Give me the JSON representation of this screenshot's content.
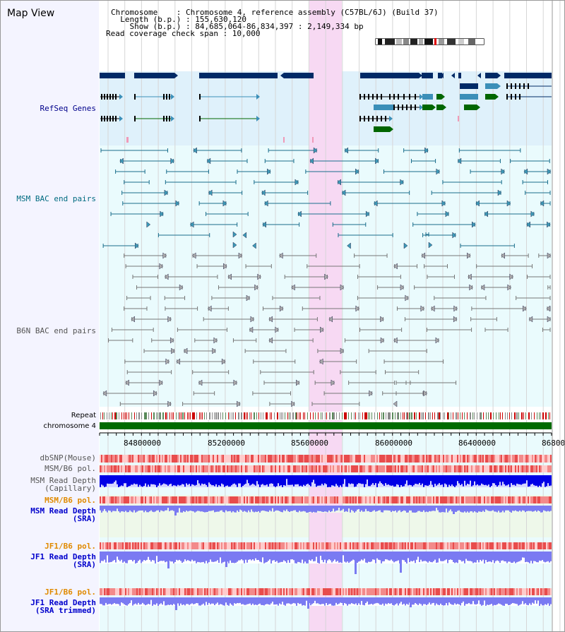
{
  "title": "Map View",
  "header": {
    "chromosome_label": "Chromosome    : Chromosome 4, reference assembly (C57BL/6J) (Build 37)",
    "length_label": "  Length (b.p.) : 155,630,120",
    "show_label": "    Show (b.p.) : 84,685,064-86,834,397 : 2,149,334 bp",
    "coverage_label": "Read coverage check span : 10,000"
  },
  "tracks": {
    "refseq": "RefSeq Genes",
    "msm_bac": "MSM BAC end pairs",
    "b6n_bac": "B6N BAC end pairs",
    "repeat": "Repeat",
    "chromosome": "chromosome 4",
    "dbsnp": "dbSNP(Mouse)",
    "msm_b6_pol_1": "MSM/B6 pol.",
    "msm_depth_cap": "MSM Read Depth\n(Capillary)",
    "msm_b6_pol_2": "MSM/B6 pol.",
    "msm_depth_sra": "MSM Read Depth\n(SRA)",
    "jf1_b6_pol_1": "JF1/B6 pol.",
    "jf1_depth_sra": "JF1 Read Depth\n(SRA)",
    "jf1_b6_pol_2": "JF1/B6 pol.",
    "jf1_depth_trim": "JF1 Read Depth\n(SRA trimmed)"
  },
  "axis": {
    "ticks": [
      "84800000",
      "85200000",
      "85600000",
      "86000000",
      "86400000",
      "86800"
    ]
  },
  "colors": {
    "refseq_bg": "#dff1fb",
    "bac_bg": "#eafbfd",
    "highlight": "#f7d9f3",
    "gene_dark": "#002a66",
    "gene_mid": "#3b8fb8",
    "gene_green": "#006600",
    "chromosome_bar": "#006b00",
    "depth_dark": "#0000e6",
    "depth_light": "#7a7af2"
  }
}
